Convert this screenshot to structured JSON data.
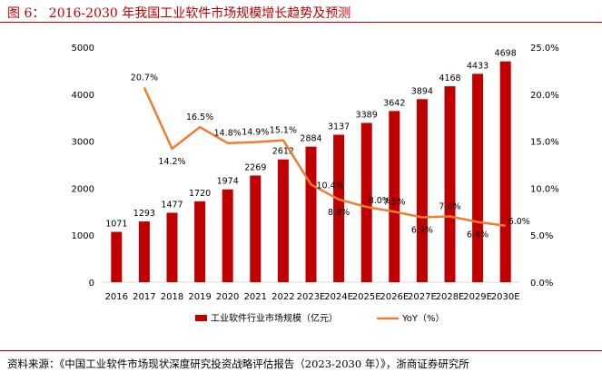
{
  "figure": {
    "title": "图 6：  2016-2030 年我国工业软件市场规模增长趋势及预测",
    "source": "资料来源：《中国工业软件市场现状深度研究投资战略评估报告（2023-2030 年）》，浙商证券研究所"
  },
  "chart_data": {
    "type": "bar",
    "title": "",
    "categories": [
      "2016",
      "2017",
      "2018",
      "2019",
      "2020",
      "2021",
      "2022",
      "2023E",
      "2024E",
      "2025E",
      "2026E",
      "2027E",
      "2028E",
      "2029E",
      "2030E"
    ],
    "series": [
      {
        "name": "工业软件行业市场规模（亿元）",
        "type": "bar",
        "axis": "left",
        "color": "#c00000",
        "values": [
          1071,
          1293,
          1477,
          1720,
          1974,
          2269,
          2612,
          2884,
          3137,
          3389,
          3642,
          3894,
          4168,
          4433,
          4698
        ],
        "labels": [
          "1071",
          "1293",
          "1477",
          "1720",
          "1974",
          "2269",
          "2612",
          "2884",
          "3137",
          "3389",
          "3642",
          "3894",
          "4168",
          "4433",
          "4698"
        ]
      },
      {
        "name": "YoY（%）",
        "type": "line",
        "axis": "right",
        "color": "#ed7d31",
        "values": [
          null,
          20.7,
          14.2,
          16.5,
          14.8,
          14.9,
          15.1,
          10.4,
          8.8,
          8.0,
          7.5,
          6.9,
          7.0,
          6.4,
          6.0
        ],
        "labels": [
          "",
          "20.7%",
          "14.2%",
          "16.5%",
          "14.8%",
          "14.9%",
          "15.1%",
          "10.4%",
          "8.8%",
          "8.0%",
          "7.5%",
          "6.9%",
          "7.0%",
          "6.4%",
          "6.0%"
        ]
      }
    ],
    "ylim_left": [
      0,
      5000
    ],
    "ylim_right": [
      0,
      25
    ],
    "left_ticks": [
      "0",
      "1000",
      "2000",
      "3000",
      "4000",
      "5000"
    ],
    "right_ticks": [
      "0.0%",
      "5.0%",
      "10.0%",
      "15.0%",
      "20.0%",
      "25.0%"
    ],
    "legend_position": "bottom-center",
    "grid": false
  }
}
